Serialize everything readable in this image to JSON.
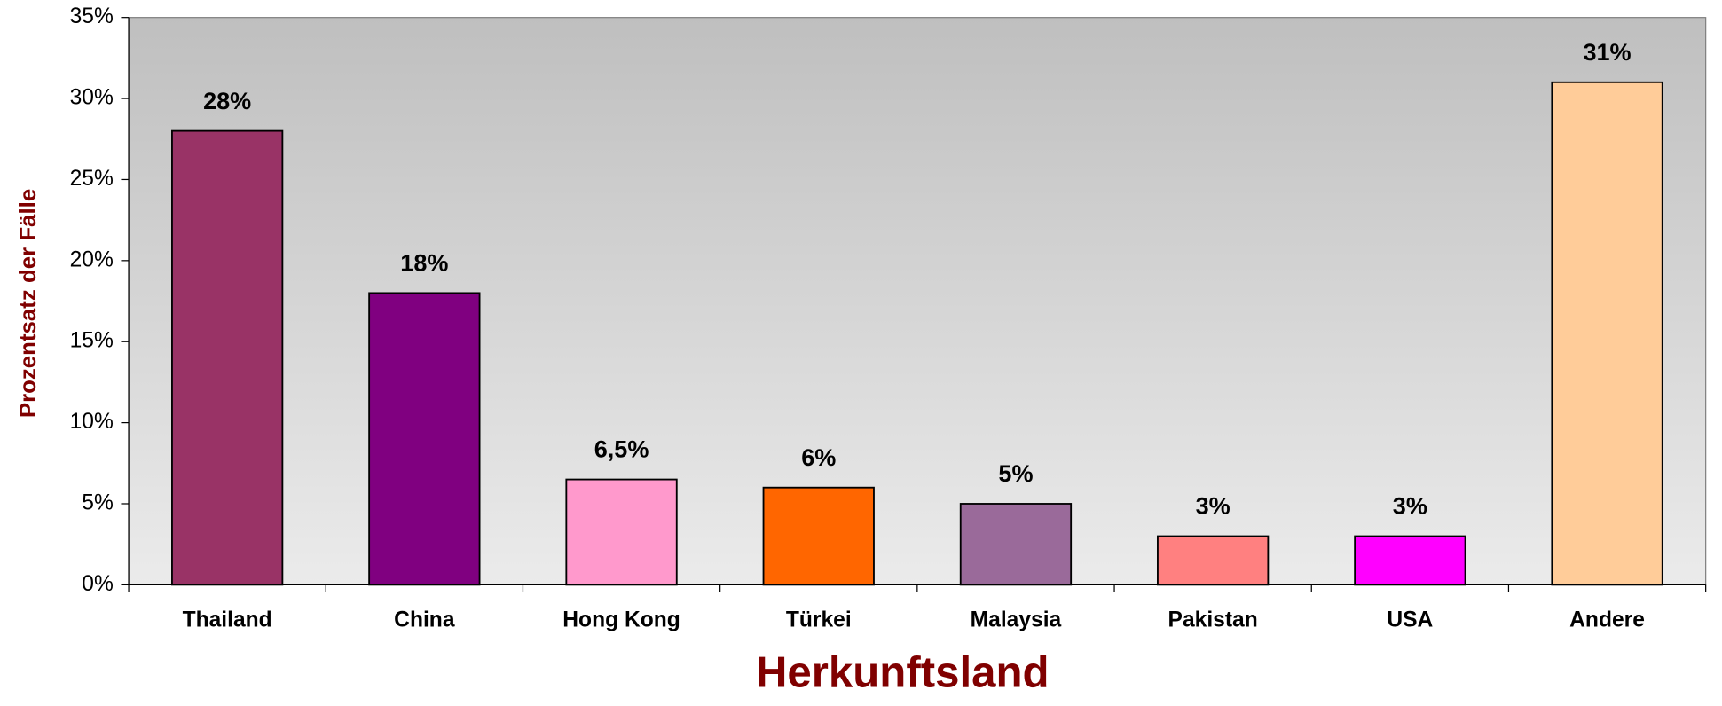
{
  "chart_data": {
    "type": "bar",
    "x_label": "Herkunftsland",
    "y_label": "Prozentsatz der Fälle",
    "categories": [
      "Thailand",
      "China",
      "Hong Kong",
      "Türkei",
      "Malaysia",
      "Pakistan",
      "USA",
      "Andere"
    ],
    "values": [
      28,
      18,
      6.5,
      6,
      5,
      3,
      3,
      31
    ],
    "value_labels": [
      "28%",
      "18%",
      "6,5%",
      "6%",
      "5%",
      "3%",
      "3%",
      "31%"
    ],
    "colors": [
      "#993366",
      "#800080",
      "#ff99cc",
      "#ff6600",
      "#9a6a9a",
      "#ff8080",
      "#ff00ff",
      "#ffcc99"
    ],
    "ylim": [
      0,
      35
    ],
    "yticks": [
      {
        "value": 0,
        "label": "0%"
      },
      {
        "value": 5,
        "label": "5%"
      },
      {
        "value": 10,
        "label": "10%"
      },
      {
        "value": 15,
        "label": "15%"
      },
      {
        "value": 20,
        "label": "20%"
      },
      {
        "value": 25,
        "label": "25%"
      },
      {
        "value": 30,
        "label": "30%"
      },
      {
        "value": 35,
        "label": "35%"
      }
    ]
  }
}
